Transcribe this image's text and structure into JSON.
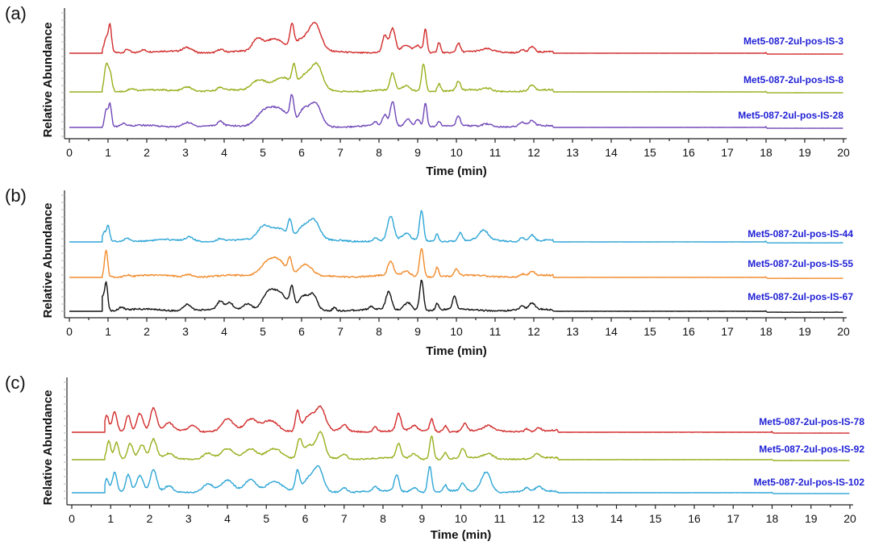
{
  "figure": {
    "panels": [
      "a",
      "b",
      "c"
    ]
  },
  "chart_data": [
    {
      "type": "line",
      "panel_label": "(a)",
      "ylabel": "Relative Abundance",
      "xlabel": "Time (min)",
      "xlim": [
        0,
        20
      ],
      "xticks": [
        "0",
        "1",
        "2",
        "3",
        "4",
        "5",
        "6",
        "7",
        "8",
        "9",
        "10",
        "11",
        "12",
        "13",
        "14",
        "15",
        "16",
        "17",
        "18",
        "19",
        "20"
      ],
      "series": [
        {
          "name": "Met5-087-2ul-pos-IS-3",
          "color": "#d22b2b",
          "peaks": [
            [
              0.95,
              0.45,
              0.05
            ],
            [
              1.05,
              0.85,
              0.04
            ],
            [
              1.5,
              0.12,
              0.06
            ],
            [
              1.9,
              0.08,
              0.08
            ],
            [
              3.05,
              0.15,
              0.12
            ],
            [
              3.9,
              0.1,
              0.08
            ],
            [
              4.85,
              0.35,
              0.12
            ],
            [
              5.3,
              0.45,
              0.25
            ],
            [
              5.75,
              0.7,
              0.05
            ],
            [
              6.0,
              0.4,
              0.2
            ],
            [
              6.35,
              0.85,
              0.15
            ],
            [
              8.15,
              0.55,
              0.06
            ],
            [
              8.35,
              0.75,
              0.07
            ],
            [
              8.7,
              0.2,
              0.1
            ],
            [
              9.0,
              0.2,
              0.08
            ],
            [
              9.2,
              0.75,
              0.04
            ],
            [
              9.55,
              0.35,
              0.04
            ],
            [
              10.05,
              0.3,
              0.05
            ],
            [
              10.8,
              0.08,
              0.12
            ],
            [
              11.7,
              0.12,
              0.06
            ],
            [
              11.95,
              0.2,
              0.07
            ],
            [
              18.0,
              0.05,
              0.01
            ]
          ]
        },
        {
          "name": "Met5-087-2ul-pos-IS-8",
          "color": "#9aae1c",
          "peaks": [
            [
              0.95,
              0.8,
              0.05
            ],
            [
              1.05,
              0.6,
              0.05
            ],
            [
              1.6,
              0.08,
              0.08
            ],
            [
              3.05,
              0.15,
              0.12
            ],
            [
              3.9,
              0.1,
              0.08
            ],
            [
              4.9,
              0.35,
              0.18
            ],
            [
              5.5,
              0.45,
              0.25
            ],
            [
              5.8,
              0.6,
              0.05
            ],
            [
              6.1,
              0.45,
              0.15
            ],
            [
              6.4,
              0.8,
              0.14
            ],
            [
              8.35,
              0.55,
              0.06
            ],
            [
              8.7,
              0.15,
              0.1
            ],
            [
              9.15,
              0.9,
              0.05
            ],
            [
              9.55,
              0.25,
              0.04
            ],
            [
              10.05,
              0.3,
              0.05
            ],
            [
              10.8,
              0.08,
              0.12
            ],
            [
              11.95,
              0.18,
              0.07
            ],
            [
              18.0,
              0.03,
              0.01
            ]
          ]
        },
        {
          "name": "Met5-087-2ul-pos-IS-28",
          "color": "#7048b8",
          "peaks": [
            [
              0.95,
              0.55,
              0.04
            ],
            [
              1.05,
              0.75,
              0.04
            ],
            [
              1.4,
              0.1,
              0.06
            ],
            [
              3.05,
              0.15,
              0.12
            ],
            [
              3.9,
              0.15,
              0.06
            ],
            [
              5.0,
              0.4,
              0.2
            ],
            [
              5.4,
              0.55,
              0.25
            ],
            [
              5.75,
              0.8,
              0.05
            ],
            [
              6.05,
              0.45,
              0.12
            ],
            [
              6.35,
              0.75,
              0.15
            ],
            [
              7.9,
              0.12,
              0.05
            ],
            [
              8.15,
              0.35,
              0.06
            ],
            [
              8.35,
              0.8,
              0.06
            ],
            [
              8.75,
              0.25,
              0.08
            ],
            [
              9.0,
              0.25,
              0.06
            ],
            [
              9.2,
              0.8,
              0.04
            ],
            [
              9.55,
              0.15,
              0.04
            ],
            [
              10.05,
              0.3,
              0.05
            ],
            [
              10.8,
              0.1,
              0.12
            ],
            [
              11.7,
              0.12,
              0.06
            ],
            [
              11.95,
              0.15,
              0.07
            ],
            [
              18.0,
              0.04,
              0.01
            ]
          ]
        }
      ]
    },
    {
      "type": "line",
      "panel_label": "(b)",
      "ylabel": "Relative Abundance",
      "xlabel": "Time (min)",
      "xlim": [
        0,
        20
      ],
      "xticks": [
        "0",
        "1",
        "2",
        "3",
        "4",
        "5",
        "6",
        "7",
        "8",
        "9",
        "10",
        "11",
        "12",
        "13",
        "14",
        "15",
        "16",
        "17",
        "18",
        "19",
        "20"
      ],
      "series": [
        {
          "name": "Met5-087-2ul-pos-IS-44",
          "color": "#2fa6d6",
          "peaks": [
            [
              0.9,
              0.25,
              0.04
            ],
            [
              1.0,
              0.45,
              0.04
            ],
            [
              1.5,
              0.1,
              0.08
            ],
            [
              3.1,
              0.12,
              0.1
            ],
            [
              3.9,
              0.08,
              0.08
            ],
            [
              5.0,
              0.35,
              0.15
            ],
            [
              5.4,
              0.4,
              0.25
            ],
            [
              5.7,
              0.5,
              0.05
            ],
            [
              6.0,
              0.35,
              0.12
            ],
            [
              6.3,
              0.65,
              0.15
            ],
            [
              7.9,
              0.12,
              0.05
            ],
            [
              8.3,
              0.75,
              0.08
            ],
            [
              8.7,
              0.2,
              0.1
            ],
            [
              9.1,
              0.95,
              0.05
            ],
            [
              9.5,
              0.25,
              0.04
            ],
            [
              10.1,
              0.25,
              0.05
            ],
            [
              10.7,
              0.3,
              0.12
            ],
            [
              11.7,
              0.12,
              0.06
            ],
            [
              11.95,
              0.2,
              0.07
            ],
            [
              18.0,
              0.04,
              0.01
            ]
          ]
        },
        {
          "name": "Met5-087-2ul-pos-IS-55",
          "color": "#f18b2c",
          "peaks": [
            [
              0.95,
              0.85,
              0.04
            ],
            [
              1.5,
              0.06,
              0.08
            ],
            [
              3.1,
              0.08,
              0.1
            ],
            [
              5.1,
              0.35,
              0.2
            ],
            [
              5.4,
              0.45,
              0.2
            ],
            [
              5.7,
              0.45,
              0.05
            ],
            [
              6.1,
              0.35,
              0.15
            ],
            [
              8.3,
              0.45,
              0.07
            ],
            [
              8.7,
              0.15,
              0.1
            ],
            [
              9.1,
              0.9,
              0.05
            ],
            [
              9.5,
              0.3,
              0.04
            ],
            [
              10.0,
              0.2,
              0.05
            ],
            [
              11.7,
              0.08,
              0.06
            ],
            [
              11.95,
              0.15,
              0.07
            ],
            [
              18.0,
              0.03,
              0.01
            ]
          ]
        },
        {
          "name": "Met5-087-2ul-pos-IS-67",
          "color": "#111111",
          "peaks": [
            [
              0.85,
              0.4,
              0.04
            ],
            [
              0.95,
              0.9,
              0.04
            ],
            [
              1.35,
              0.1,
              0.06
            ],
            [
              3.05,
              0.2,
              0.1
            ],
            [
              3.9,
              0.25,
              0.08
            ],
            [
              4.15,
              0.2,
              0.08
            ],
            [
              4.6,
              0.2,
              0.12
            ],
            [
              5.1,
              0.4,
              0.15
            ],
            [
              5.4,
              0.55,
              0.2
            ],
            [
              5.75,
              0.6,
              0.05
            ],
            [
              6.05,
              0.4,
              0.12
            ],
            [
              6.3,
              0.45,
              0.1
            ],
            [
              6.85,
              0.1,
              0.05
            ],
            [
              7.8,
              0.1,
              0.05
            ],
            [
              8.25,
              0.55,
              0.07
            ],
            [
              8.75,
              0.25,
              0.1
            ],
            [
              9.1,
              0.95,
              0.05
            ],
            [
              9.5,
              0.2,
              0.04
            ],
            [
              9.95,
              0.4,
              0.05
            ],
            [
              11.7,
              0.1,
              0.06
            ],
            [
              11.95,
              0.2,
              0.07
            ],
            [
              18.0,
              0.03,
              0.01
            ]
          ]
        }
      ]
    },
    {
      "type": "line",
      "panel_label": "(c)",
      "ylabel": "Relative Abundance",
      "xlabel": "Time (min)",
      "xlim": [
        0,
        20
      ],
      "xticks": [
        "0",
        "1",
        "2",
        "3",
        "4",
        "5",
        "6",
        "7",
        "8",
        "9",
        "10",
        "11",
        "12",
        "13",
        "14",
        "15",
        "16",
        "17",
        "18",
        "19",
        "20"
      ],
      "series": [
        {
          "name": "Met5-087-2ul-pos-IS-78",
          "color": "#d22b2b",
          "peaks": [
            [
              0.9,
              0.5,
              0.05
            ],
            [
              1.1,
              0.65,
              0.06
            ],
            [
              1.45,
              0.55,
              0.06
            ],
            [
              1.75,
              0.6,
              0.08
            ],
            [
              2.1,
              0.75,
              0.08
            ],
            [
              2.5,
              0.25,
              0.1
            ],
            [
              3.1,
              0.2,
              0.1
            ],
            [
              4.0,
              0.4,
              0.15
            ],
            [
              4.6,
              0.35,
              0.15
            ],
            [
              5.1,
              0.35,
              0.2
            ],
            [
              5.8,
              0.65,
              0.05
            ],
            [
              6.1,
              0.5,
              0.15
            ],
            [
              6.4,
              0.7,
              0.12
            ],
            [
              7.0,
              0.2,
              0.08
            ],
            [
              7.8,
              0.15,
              0.06
            ],
            [
              8.4,
              0.55,
              0.06
            ],
            [
              8.8,
              0.15,
              0.08
            ],
            [
              9.25,
              0.4,
              0.05
            ],
            [
              9.6,
              0.2,
              0.05
            ],
            [
              10.1,
              0.25,
              0.06
            ],
            [
              10.7,
              0.15,
              0.12
            ],
            [
              11.7,
              0.1,
              0.06
            ],
            [
              12.0,
              0.12,
              0.07
            ],
            [
              18.0,
              0.05,
              0.01
            ]
          ]
        },
        {
          "name": "Met5-087-2ul-pos-IS-92",
          "color": "#9aae1c",
          "peaks": [
            [
              0.95,
              0.6,
              0.05
            ],
            [
              1.15,
              0.55,
              0.06
            ],
            [
              1.5,
              0.5,
              0.07
            ],
            [
              1.8,
              0.45,
              0.08
            ],
            [
              2.1,
              0.6,
              0.08
            ],
            [
              2.5,
              0.15,
              0.1
            ],
            [
              3.5,
              0.2,
              0.12
            ],
            [
              4.0,
              0.3,
              0.15
            ],
            [
              4.6,
              0.3,
              0.15
            ],
            [
              5.2,
              0.35,
              0.2
            ],
            [
              5.85,
              0.55,
              0.06
            ],
            [
              6.1,
              0.4,
              0.15
            ],
            [
              6.4,
              0.8,
              0.1
            ],
            [
              7.0,
              0.15,
              0.08
            ],
            [
              8.4,
              0.45,
              0.06
            ],
            [
              8.8,
              0.15,
              0.08
            ],
            [
              9.25,
              0.75,
              0.05
            ],
            [
              9.6,
              0.2,
              0.05
            ],
            [
              10.05,
              0.3,
              0.06
            ],
            [
              10.7,
              0.15,
              0.12
            ],
            [
              11.95,
              0.15,
              0.07
            ],
            [
              18.0,
              0.03,
              0.01
            ]
          ]
        },
        {
          "name": "Met5-087-2ul-pos-IS-102",
          "color": "#2fa6d6",
          "peaks": [
            [
              0.9,
              0.45,
              0.05
            ],
            [
              1.1,
              0.65,
              0.06
            ],
            [
              1.45,
              0.55,
              0.06
            ],
            [
              1.75,
              0.5,
              0.08
            ],
            [
              2.1,
              0.7,
              0.08
            ],
            [
              2.5,
              0.2,
              0.1
            ],
            [
              3.5,
              0.25,
              0.12
            ],
            [
              4.0,
              0.35,
              0.15
            ],
            [
              4.6,
              0.4,
              0.15
            ],
            [
              5.2,
              0.35,
              0.2
            ],
            [
              5.8,
              0.65,
              0.05
            ],
            [
              6.1,
              0.4,
              0.15
            ],
            [
              6.35,
              0.7,
              0.12
            ],
            [
              7.0,
              0.15,
              0.08
            ],
            [
              7.8,
              0.15,
              0.06
            ],
            [
              8.35,
              0.55,
              0.06
            ],
            [
              8.8,
              0.15,
              0.08
            ],
            [
              9.2,
              0.85,
              0.05
            ],
            [
              9.6,
              0.2,
              0.05
            ],
            [
              10.05,
              0.25,
              0.06
            ],
            [
              10.65,
              0.65,
              0.12
            ],
            [
              11.7,
              0.12,
              0.06
            ],
            [
              12.0,
              0.15,
              0.07
            ],
            [
              18.0,
              0.03,
              0.01
            ]
          ]
        }
      ]
    }
  ]
}
